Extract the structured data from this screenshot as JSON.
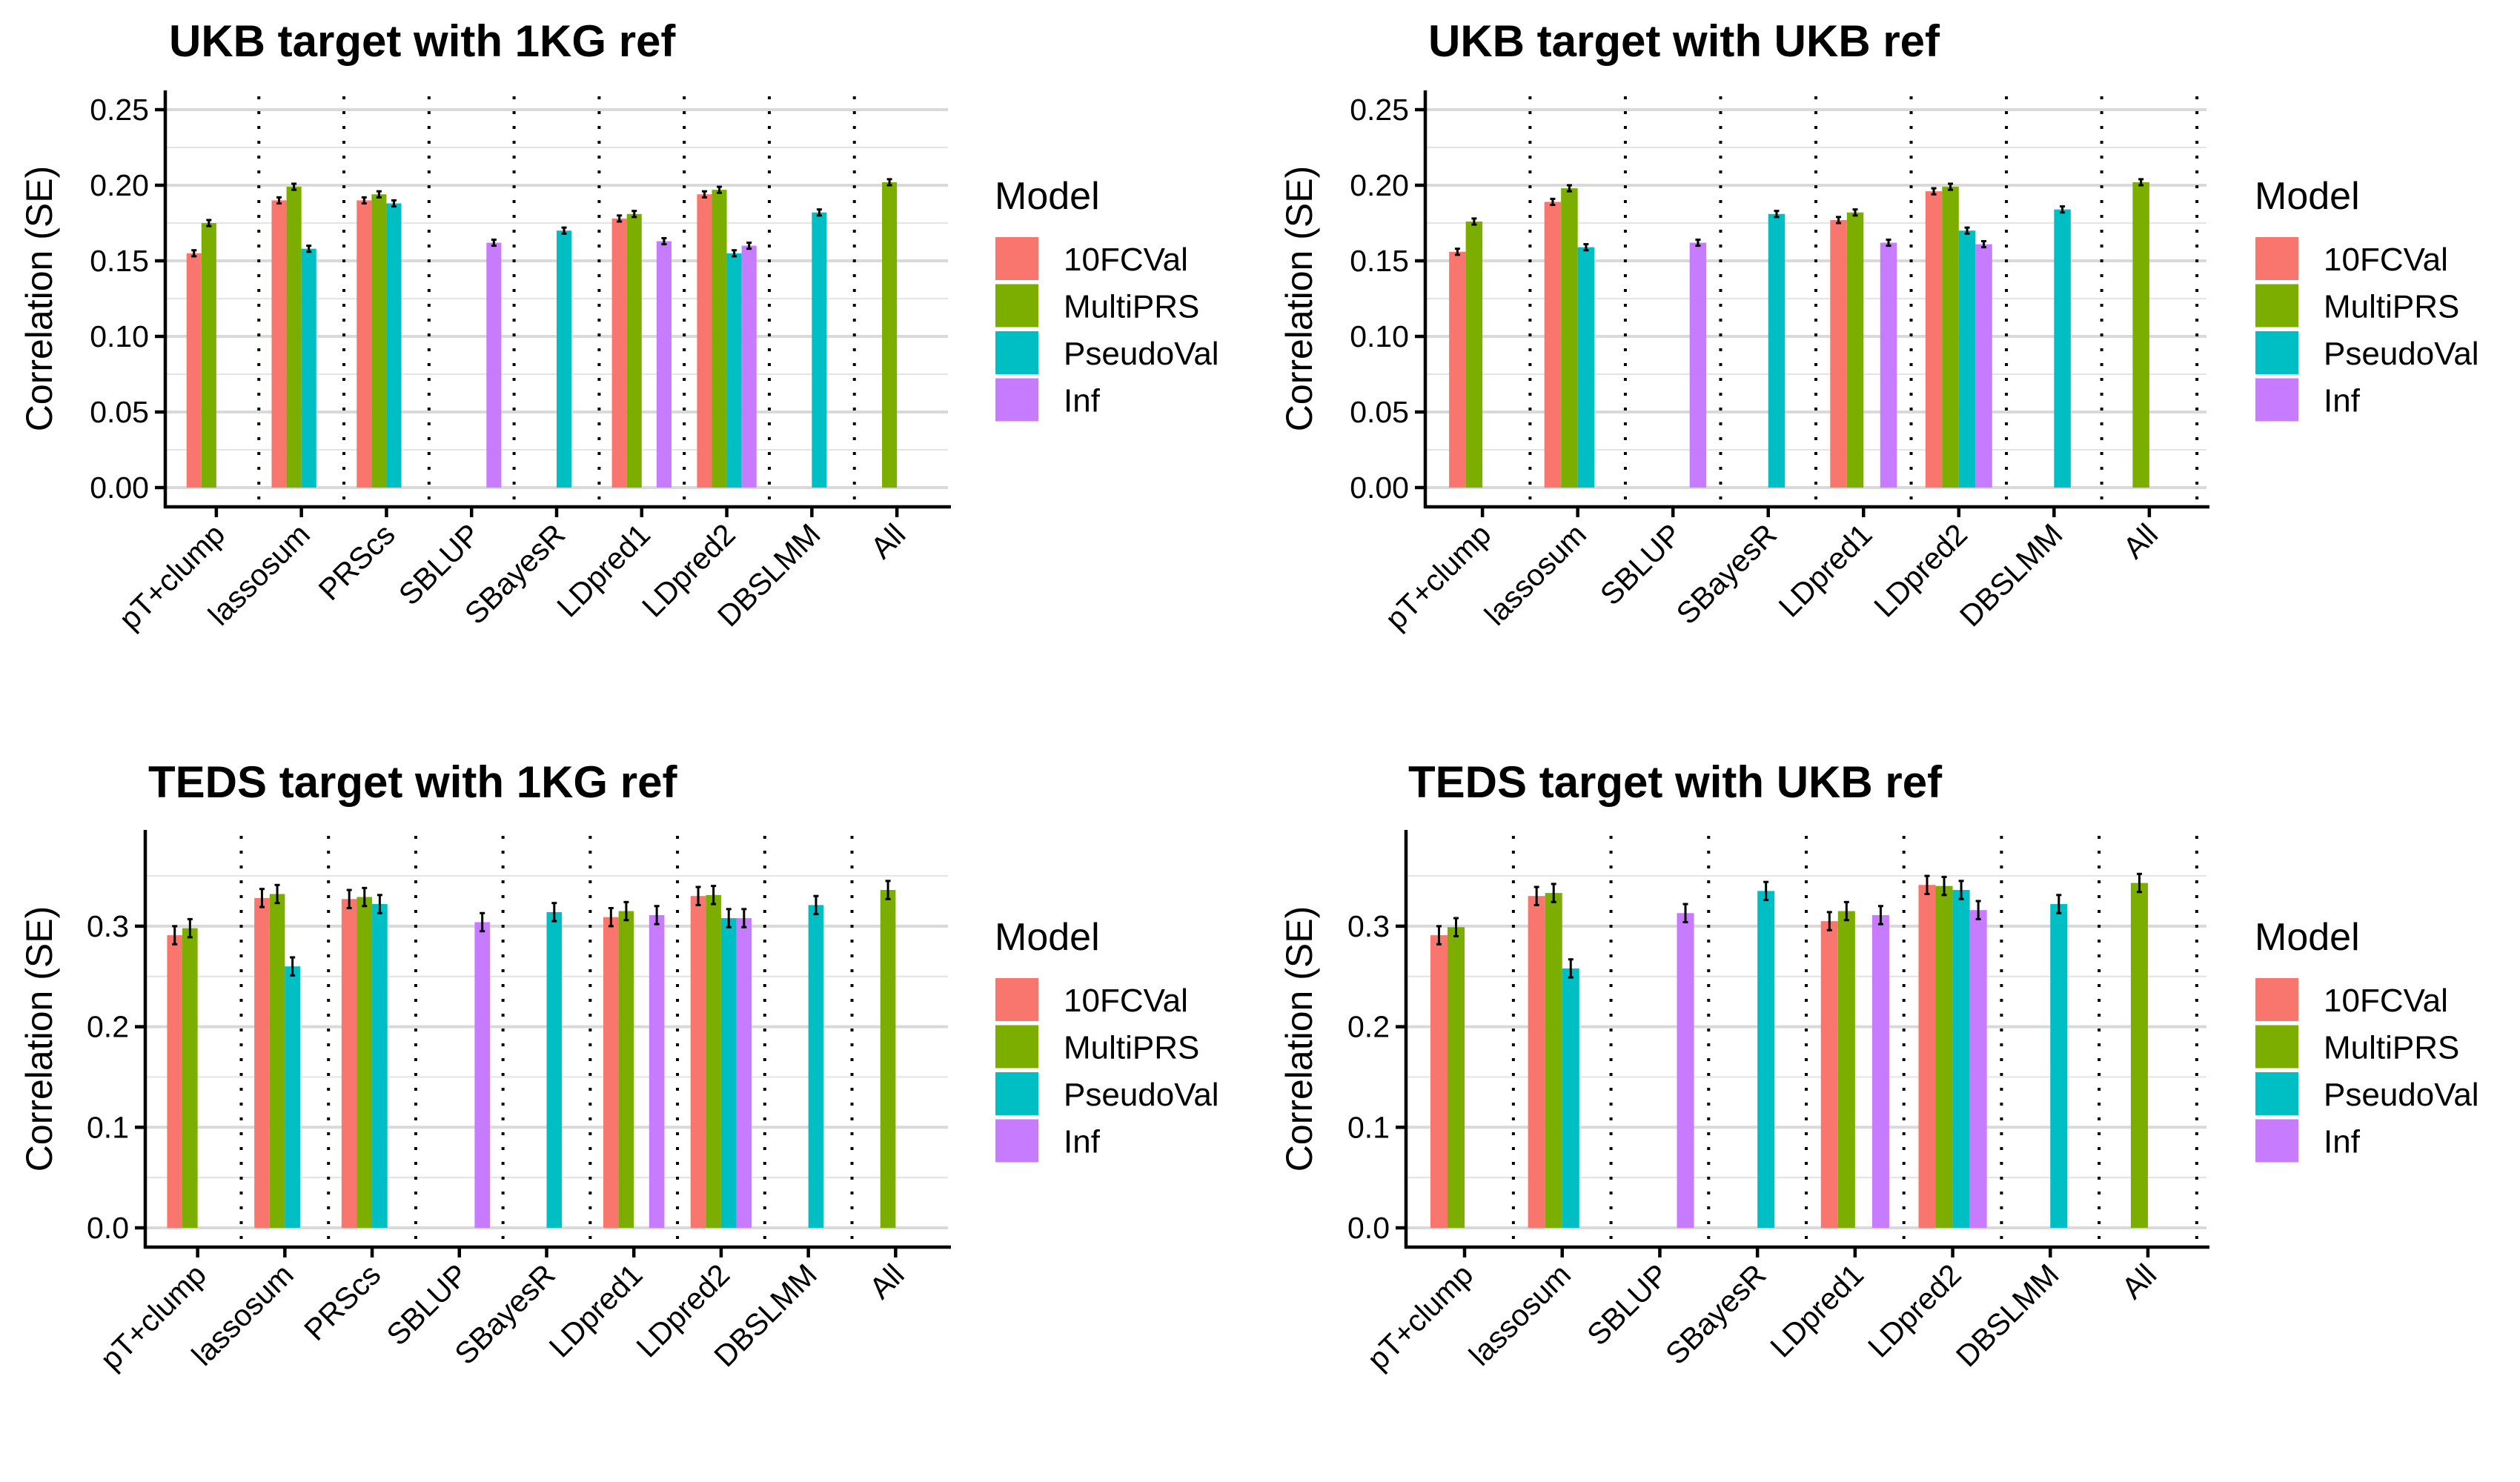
{
  "chart_data": [
    {
      "type": "bar",
      "title": "UKB target with 1KG ref",
      "xlabel": "",
      "ylabel": "Correlation (SE)",
      "categories": [
        "pT+clump",
        "lassosum",
        "PRScs",
        "SBLUP",
        "SBayesR",
        "LDpred1",
        "LDpred2",
        "DBSLMM",
        "All"
      ],
      "ylim": [
        0,
        0.25
      ],
      "yticks": [
        0,
        0.05,
        0.1,
        0.15,
        0.2,
        0.25
      ],
      "ytick_labels": [
        "0.00",
        "0.05",
        "0.10",
        "0.15",
        "0.20",
        "0.25"
      ],
      "grid": true,
      "legend_title": "Model",
      "legend_position": "right",
      "series": [
        {
          "name": "10FCVal",
          "values": [
            0.155,
            0.19,
            0.19,
            null,
            null,
            0.178,
            0.194,
            null,
            null
          ],
          "se": 0.002
        },
        {
          "name": "MultiPRS",
          "values": [
            0.175,
            0.199,
            0.194,
            null,
            null,
            0.181,
            0.197,
            null,
            0.202
          ],
          "se": 0.002
        },
        {
          "name": "PseudoVal",
          "values": [
            null,
            0.158,
            0.188,
            null,
            0.17,
            null,
            0.155,
            0.182,
            null
          ],
          "se": 0.002
        },
        {
          "name": "Inf",
          "values": [
            null,
            null,
            null,
            0.162,
            null,
            0.163,
            0.16,
            null,
            null
          ],
          "se": 0.002
        }
      ]
    },
    {
      "type": "bar",
      "title": "UKB target with UKB ref",
      "xlabel": "",
      "ylabel": "Correlation (SE)",
      "categories": [
        "pT+clump",
        "lassosum",
        "SBLUP",
        "SBayesR",
        "LDpred1",
        "LDpred2",
        "DBSLMM",
        "All"
      ],
      "ylim": [
        0,
        0.25
      ],
      "yticks": [
        0,
        0.05,
        0.1,
        0.15,
        0.2,
        0.25
      ],
      "ytick_labels": [
        "0.00",
        "0.05",
        "0.10",
        "0.15",
        "0.20",
        "0.25"
      ],
      "grid": true,
      "legend_title": "Model",
      "legend_position": "right",
      "series": [
        {
          "name": "10FCVal",
          "values": [
            0.156,
            0.189,
            null,
            null,
            0.177,
            0.196,
            null,
            null
          ],
          "se": 0.002
        },
        {
          "name": "MultiPRS",
          "values": [
            0.176,
            0.198,
            null,
            null,
            0.182,
            0.199,
            null,
            0.202
          ],
          "se": 0.002
        },
        {
          "name": "PseudoVal",
          "values": [
            null,
            0.159,
            null,
            0.181,
            null,
            0.17,
            0.184,
            null
          ],
          "se": 0.002
        },
        {
          "name": "Inf",
          "values": [
            null,
            null,
            0.162,
            null,
            0.162,
            0.161,
            null,
            null
          ],
          "se": 0.002
        }
      ]
    },
    {
      "type": "bar",
      "title": "TEDS target with 1KG ref",
      "xlabel": "",
      "ylabel": "Correlation (SE)",
      "categories": [
        "pT+clump",
        "lassosum",
        "PRScs",
        "SBLUP",
        "SBayesR",
        "LDpred1",
        "LDpred2",
        "DBSLMM",
        "All"
      ],
      "ylim": [
        0,
        0.39
      ],
      "yticks": [
        0,
        0.1,
        0.2,
        0.3
      ],
      "ytick_labels": [
        "0.0",
        "0.1",
        "0.2",
        "0.3"
      ],
      "grid": true,
      "legend_title": "Model",
      "legend_position": "right",
      "series": [
        {
          "name": "10FCVal",
          "values": [
            0.291,
            0.328,
            0.327,
            null,
            null,
            0.309,
            0.33,
            null,
            null
          ],
          "se": 0.009
        },
        {
          "name": "MultiPRS",
          "values": [
            0.298,
            0.332,
            0.329,
            null,
            null,
            0.315,
            0.331,
            null,
            0.336
          ],
          "se": 0.009
        },
        {
          "name": "PseudoVal",
          "values": [
            null,
            0.26,
            0.322,
            null,
            0.314,
            null,
            0.308,
            0.321,
            null
          ],
          "se": 0.009
        },
        {
          "name": "Inf",
          "values": [
            null,
            null,
            null,
            0.304,
            null,
            0.311,
            0.308,
            null,
            null
          ],
          "se": 0.009
        }
      ]
    },
    {
      "type": "bar",
      "title": "TEDS target with UKB ref",
      "xlabel": "",
      "ylabel": "Correlation (SE)",
      "categories": [
        "pT+clump",
        "lassosum",
        "SBLUP",
        "SBayesR",
        "LDpred1",
        "LDpred2",
        "DBSLMM",
        "All"
      ],
      "ylim": [
        0,
        0.39
      ],
      "yticks": [
        0,
        0.1,
        0.2,
        0.3
      ],
      "ytick_labels": [
        "0.0",
        "0.1",
        "0.2",
        "0.3"
      ],
      "grid": true,
      "legend_title": "Model",
      "legend_position": "right",
      "series": [
        {
          "name": "10FCVal",
          "values": [
            0.291,
            0.33,
            null,
            null,
            0.305,
            0.341,
            null,
            null
          ],
          "se": 0.009
        },
        {
          "name": "MultiPRS",
          "values": [
            0.299,
            0.333,
            null,
            null,
            0.315,
            0.34,
            null,
            0.343
          ],
          "se": 0.009
        },
        {
          "name": "PseudoVal",
          "values": [
            null,
            0.258,
            null,
            0.335,
            null,
            0.336,
            0.322,
            null
          ],
          "se": 0.009
        },
        {
          "name": "Inf",
          "values": [
            null,
            null,
            0.313,
            null,
            0.311,
            0.316,
            null,
            null
          ],
          "se": 0.009
        }
      ]
    }
  ],
  "colors": {
    "10FCVal": "#F8766D",
    "MultiPRS": "#7CAE00",
    "PseudoVal": "#00BFC4",
    "Inf": "#C77CFF"
  }
}
